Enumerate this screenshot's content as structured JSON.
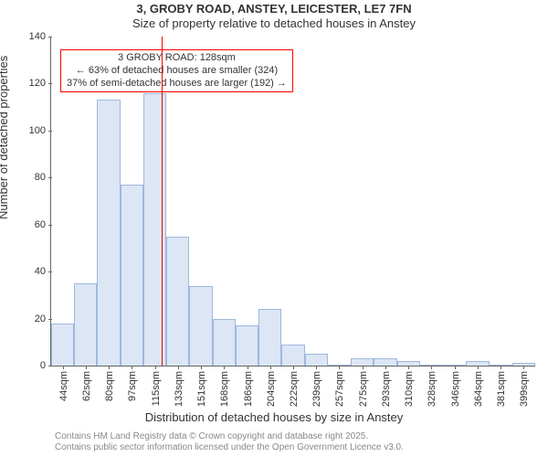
{
  "title_main": "3, GROBY ROAD, ANSTEY, LEICESTER, LE7 7FN",
  "title_sub": "Size of property relative to detached houses in Anstey",
  "y_label": "Number of detached properties",
  "x_label": "Distribution of detached houses by size in Anstey",
  "chart": {
    "type": "histogram",
    "bar_fill": "#dce6f5",
    "bar_stroke": "#9fb7dd",
    "background": "#ffffff",
    "axis_color": "#666666",
    "tick_fontsize": 11,
    "label_fontsize": 13,
    "title_fontsize": 13,
    "ylim": [
      0,
      140
    ],
    "y_ticks": [
      0,
      20,
      40,
      60,
      80,
      100,
      120,
      140
    ],
    "x_ticks": [
      "44sqm",
      "62sqm",
      "80sqm",
      "97sqm",
      "115sqm",
      "133sqm",
      "151sqm",
      "168sqm",
      "186sqm",
      "204sqm",
      "222sqm",
      "239sqm",
      "257sqm",
      "275sqm",
      "293sqm",
      "310sqm",
      "328sqm",
      "346sqm",
      "364sqm",
      "381sqm",
      "399sqm"
    ],
    "bins": [
      {
        "label": "44sqm",
        "value": 18
      },
      {
        "label": "62sqm",
        "value": 35
      },
      {
        "label": "80sqm",
        "value": 113
      },
      {
        "label": "97sqm",
        "value": 77
      },
      {
        "label": "115sqm",
        "value": 116
      },
      {
        "label": "133sqm",
        "value": 55
      },
      {
        "label": "151sqm",
        "value": 34
      },
      {
        "label": "168sqm",
        "value": 20
      },
      {
        "label": "186sqm",
        "value": 17
      },
      {
        "label": "204sqm",
        "value": 24
      },
      {
        "label": "222sqm",
        "value": 9
      },
      {
        "label": "239sqm",
        "value": 5
      },
      {
        "label": "257sqm",
        "value": 0
      },
      {
        "label": "275sqm",
        "value": 3
      },
      {
        "label": "293sqm",
        "value": 3
      },
      {
        "label": "310sqm",
        "value": 2
      },
      {
        "label": "328sqm",
        "value": 0
      },
      {
        "label": "346sqm",
        "value": 0
      },
      {
        "label": "364sqm",
        "value": 2
      },
      {
        "label": "381sqm",
        "value": 0
      },
      {
        "label": "399sqm",
        "value": 1
      }
    ],
    "marker_line": {
      "bin_index": 4.8,
      "color": "#ff0000"
    },
    "callout": {
      "border_color": "#ff0000",
      "lines": [
        "3 GROBY ROAD: 128sqm",
        "← 63% of detached houses are smaller (324)",
        "37% of semi-detached houses are larger (192) →"
      ]
    }
  },
  "attribution": {
    "line1": "Contains HM Land Registry data © Crown copyright and database right 2025.",
    "line2": "Contains public sector information licensed under the Open Government Licence v3.0."
  }
}
